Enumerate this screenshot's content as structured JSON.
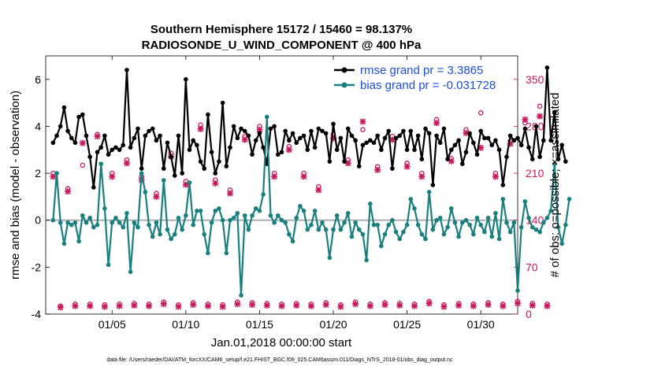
{
  "chart_data": {
    "type": "line",
    "title_line1": "Southern Hemisphere 15172 / 15460 = 98.137%",
    "title_line2": "RADIOSONDE_U_WIND_COMPONENT @ 400 hPa",
    "xlabel": "Jan.01,2018 00:00:00 start",
    "ylabel_left": "rmse and bias (model - observation)",
    "ylabel_right": "# of obs: o=possible; ×=assimilated",
    "xlim": [
      0.5,
      32.5
    ],
    "ylim_left": [
      -4,
      7
    ],
    "ylim_right": [
      0,
      385
    ],
    "x_ticks": [
      5,
      10,
      15,
      20,
      25,
      30
    ],
    "x_tick_labels": [
      "01/05",
      "01/10",
      "01/15",
      "01/20",
      "01/25",
      "01/30"
    ],
    "y_left_ticks": [
      -4,
      -2,
      0,
      2,
      4,
      6
    ],
    "y_right_ticks": [
      0,
      70,
      140,
      210,
      280,
      350
    ],
    "colors": {
      "rmse": "#000000",
      "bias": "#1a7f7f",
      "obs": "#c8195a",
      "legend_text": "#1f4fd8",
      "zero_line": "#b0b0b0"
    },
    "legend": [
      {
        "label": "rmse grand pr = 3.3865",
        "series": "rmse"
      },
      {
        "label": "bias grand pr = -0.031728",
        "series": "bias"
      }
    ],
    "footnote": "data file: /Users/raeder/DAI/ATM_forcXX/CAM6_setup/f.e21.FHIST_BGC.f09_025.CAM6assim.011/Diags_NTrS_2018-01/obs_diag_output.nc",
    "series": [
      {
        "name": "rmse",
        "x_start": 1.0,
        "x_step": 0.25,
        "values": [
          3.3,
          3.6,
          4.0,
          4.8,
          3.8,
          3.5,
          3.3,
          4.4,
          4.5,
          3.6,
          2.7,
          1.4,
          2.9,
          3.1,
          3.6,
          2.8,
          3.0,
          3.1,
          3.0,
          3.2,
          6.4,
          3.1,
          3.5,
          3.9,
          2.2,
          3.6,
          3.8,
          3.9,
          3.4,
          3.6,
          2.2,
          3.3,
          2.7,
          1.9,
          3.6,
          2.0,
          6.0,
          3.0,
          3.4,
          3.2,
          2.5,
          2.2,
          4.5,
          2.9,
          2.0,
          2.5,
          5.0,
          2.3,
          3.1,
          4.0,
          3.5,
          3.9,
          3.8,
          3.6,
          2.8,
          3.4,
          3.7,
          3.1,
          2.4,
          3.9,
          4.0,
          2.8,
          2.9,
          3.8,
          3.4,
          3.7,
          3.3,
          3.5,
          3.6,
          3.0,
          3.8,
          3.1,
          3.9,
          3.8,
          3.7,
          2.5,
          4.1,
          3.0,
          3.5,
          2.5,
          3.9,
          3.6,
          3.4,
          2.3,
          3.2,
          3.3,
          3.4,
          3.3,
          3.6,
          3.0,
          3.5,
          3.8,
          2.2,
          3.5,
          3.6,
          3.8,
          3.0,
          3.8,
          3.0,
          3.6,
          2.6,
          3.9,
          3.7,
          1.5,
          3.6,
          3.3,
          3.9,
          2.6,
          3.0,
          3.2,
          3.4,
          2.4,
          2.9,
          3.7,
          3.3,
          2.8,
          3.8,
          3.5,
          3.5,
          3.2,
          3.4,
          3.0,
          1.5,
          2.7,
          3.6,
          3.4,
          3.5,
          3.2,
          3.9,
          3.1,
          2.6,
          4.0,
          2.7,
          3.4,
          6.5,
          3.4,
          4.6,
          2.6,
          3.2,
          2.5
        ]
      },
      {
        "name": "bias",
        "x_start": 1.0,
        "x_step": 0.25,
        "values": [
          0.0,
          2.0,
          -0.1,
          -1.0,
          -0.1,
          -0.2,
          -0.1,
          -0.9,
          0.2,
          -0.1,
          0.1,
          -0.3,
          -0.2,
          2.4,
          0.5,
          -1.9,
          -0.1,
          0.1,
          -0.1,
          -0.3,
          0.3,
          -2.2,
          -0.1,
          -0.3,
          2.0,
          1.2,
          -0.2,
          -0.7,
          -0.1,
          -0.6,
          1.7,
          -0.4,
          -0.8,
          -0.6,
          0.1,
          -0.4,
          0.2,
          1.6,
          -0.2,
          0.4,
          0.4,
          -0.6,
          -1.4,
          -0.1,
          0.4,
          0.5,
          0.0,
          -1.4,
          0.0,
          0.1,
          0.3,
          -3.2,
          0.2,
          -0.4,
          0.2,
          0.5,
          0.4,
          1.1,
          4.4,
          0.2,
          -0.1,
          0.2,
          0.0,
          -0.1,
          -0.6,
          -0.9,
          0.1,
          0.6,
          0.4,
          -0.4,
          -0.2,
          0.4,
          -0.4,
          -0.1,
          -0.4,
          -1.6,
          -0.4,
          0.2,
          -0.4,
          -0.1,
          0.3,
          -0.7,
          -0.1,
          -0.4,
          -0.6,
          -1.7,
          0.7,
          -0.2,
          -0.2,
          -1.1,
          -0.6,
          -0.2,
          0.0,
          -0.5,
          -0.8,
          -0.5,
          -0.2,
          0.9,
          0.5,
          -0.2,
          -0.6,
          -0.8,
          1.2,
          -0.4,
          0.0,
          0.1,
          -0.6,
          -0.3,
          0.5,
          -0.1,
          -0.7,
          -0.1,
          0.0,
          -0.2,
          -0.6,
          0.1,
          -0.2,
          -0.5,
          0.1,
          -0.7,
          0.3,
          -0.8,
          0.9,
          -0.1,
          -0.5,
          -0.1,
          -3.0,
          -0.3,
          0.8,
          0.1,
          -0.3,
          -0.4,
          -0.5,
          -0.1,
          0.1,
          0.4,
          2.4,
          -0.3,
          -1.0,
          -0.2,
          0.9
        ]
      },
      {
        "name": "obs_possible",
        "axis": "right",
        "x_start": 1.0,
        "x_step": 0.5,
        "values": [
          210,
          12,
          187,
          15,
          222,
          15,
          268,
          14,
          210,
          15,
          230,
          16,
          205,
          15,
          180,
          18,
          240,
          14,
          198,
          17,
          282,
          15,
          200,
          14,
          185,
          18,
          265,
          17,
          280,
          16,
          210,
          15,
          250,
          16,
          210,
          15,
          190,
          17,
          268,
          14,
          230,
          18,
          275,
          15,
          220,
          17,
          265,
          16,
          225,
          15,
          210,
          19,
          290,
          14,
          232,
          16,
          275,
          15,
          300,
          17,
          210,
          15,
          258,
          19,
          285,
          16,
          310,
          15
        ]
      },
      {
        "name": "obs_assimilated",
        "axis": "right",
        "x_start": 1.0,
        "x_step": 0.5,
        "values": [
          205,
          10,
          183,
          12,
          255,
          12,
          265,
          11,
          205,
          12,
          225,
          13,
          200,
          12,
          175,
          15,
          235,
          11,
          193,
          14,
          276,
          12,
          195,
          11,
          180,
          15,
          260,
          14,
          275,
          13,
          205,
          12,
          245,
          13,
          205,
          12,
          185,
          14,
          262,
          11,
          225,
          15,
          287,
          12,
          215,
          14,
          260,
          13,
          220,
          12,
          205,
          16,
          285,
          11,
          228,
          13,
          270,
          12,
          248,
          14,
          205,
          12,
          254,
          16,
          290,
          13,
          295,
          12
        ]
      }
    ]
  }
}
